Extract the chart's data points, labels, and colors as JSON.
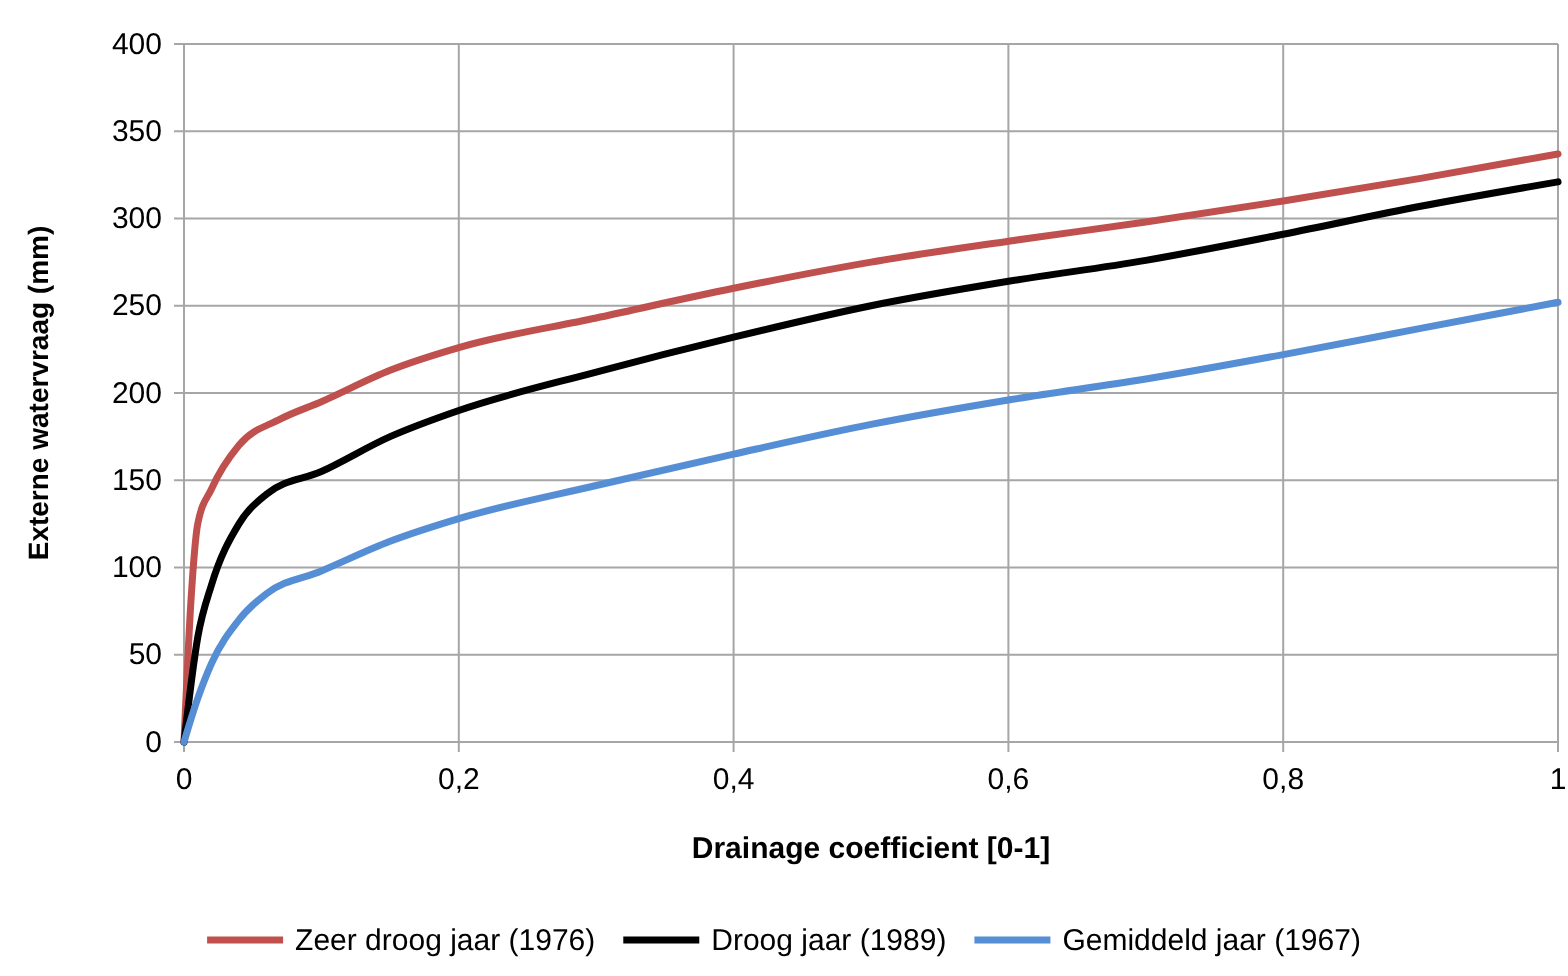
{
  "chart_data": {
    "type": "line",
    "xlabel": "Drainage coefficient [0-1]",
    "ylabel": "Externe watervraag (mm)",
    "xlim": [
      0,
      1
    ],
    "ylim": [
      0,
      400
    ],
    "xticks": [
      0,
      {
        "value": 0.2,
        "label": "0,2"
      },
      {
        "value": 0.4,
        "label": "0,4"
      },
      {
        "value": 0.6,
        "label": "0,6"
      },
      {
        "value": 0.8,
        "label": "0,8"
      },
      1
    ],
    "yticks": [
      0,
      50,
      100,
      150,
      200,
      250,
      300,
      350,
      400
    ],
    "grid": true,
    "legend": "bottom",
    "marker": "none",
    "line_style": "solid",
    "series": [
      {
        "name": "Zeer droog jaar (1976)",
        "color": "#c0504d",
        "x": [
          0,
          0.005,
          0.01,
          0.02,
          0.04,
          0.07,
          0.1,
          0.15,
          0.2,
          0.3,
          0.4,
          0.5,
          0.6,
          0.7,
          0.8,
          0.9,
          1
        ],
        "values": [
          0,
          80,
          125,
          145,
          170,
          185,
          195,
          213,
          226,
          243,
          260,
          275,
          287,
          298,
          310,
          323,
          337
        ]
      },
      {
        "name": "Droog jaar (1989)",
        "color": "#000000",
        "x": [
          0,
          0.01,
          0.02,
          0.04,
          0.06,
          0.1,
          0.15,
          0.2,
          0.3,
          0.4,
          0.5,
          0.6,
          0.7,
          0.8,
          0.9,
          1
        ],
        "values": [
          0,
          60,
          90,
          125,
          142,
          155,
          175,
          190,
          212,
          232,
          250,
          264,
          276,
          291,
          307,
          321
        ]
      },
      {
        "name": "Gemiddeld jaar (1967)",
        "color": "#558ed5",
        "x": [
          0,
          0.01,
          0.02,
          0.04,
          0.06,
          0.1,
          0.15,
          0.2,
          0.3,
          0.4,
          0.5,
          0.6,
          0.7,
          0.8,
          0.9,
          1
        ],
        "values": [
          0,
          25,
          45,
          70,
          85,
          98,
          115,
          128,
          147,
          165,
          182,
          196,
          208,
          222,
          237,
          252
        ]
      }
    ]
  }
}
